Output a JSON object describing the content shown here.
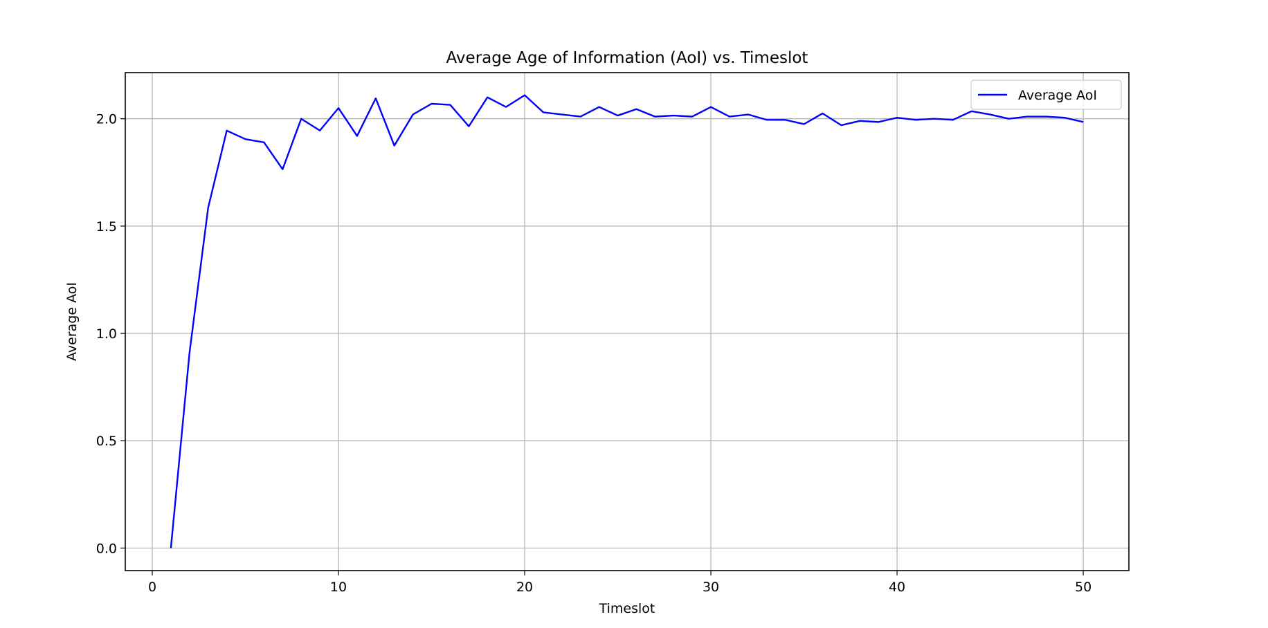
{
  "chart_data": {
    "type": "line",
    "title": "Average Age of Information (AoI) vs. Timeslot",
    "xlabel": "Timeslot",
    "ylabel": "Average AoI",
    "xlim": [
      -1.45,
      52.45
    ],
    "ylim": [
      -0.105,
      2.215
    ],
    "xticks": [
      0,
      10,
      20,
      30,
      40,
      50
    ],
    "xtick_labels": [
      "0",
      "10",
      "20",
      "30",
      "40",
      "50"
    ],
    "yticks": [
      0.0,
      0.5,
      1.0,
      1.5,
      2.0
    ],
    "ytick_labels": [
      "0.0",
      "0.5",
      "1.0",
      "1.5",
      "2.0"
    ],
    "grid": true,
    "legend_position": "top-right",
    "series": [
      {
        "name": "Average AoI",
        "color": "#0000ff",
        "x": [
          1,
          2,
          3,
          4,
          5,
          6,
          7,
          8,
          9,
          10,
          11,
          12,
          13,
          14,
          15,
          16,
          17,
          18,
          19,
          20,
          21,
          22,
          23,
          24,
          25,
          26,
          27,
          28,
          29,
          30,
          31,
          32,
          33,
          34,
          35,
          36,
          37,
          38,
          39,
          40,
          41,
          42,
          43,
          44,
          45,
          46,
          47,
          48,
          49,
          50
        ],
        "values": [
          0.0,
          0.91,
          1.585,
          1.945,
          1.905,
          1.89,
          1.765,
          2.0,
          1.945,
          2.05,
          1.92,
          2.095,
          1.875,
          2.02,
          2.07,
          2.065,
          1.965,
          2.1,
          2.055,
          2.11,
          2.03,
          2.02,
          2.01,
          2.055,
          2.015,
          2.045,
          2.01,
          2.015,
          2.01,
          2.055,
          2.01,
          2.02,
          1.995,
          1.995,
          1.975,
          2.025,
          1.97,
          1.99,
          1.985,
          2.005,
          1.995,
          2.0,
          1.995,
          2.035,
          2.02,
          2.0,
          2.01,
          2.01,
          2.005,
          1.985
        ]
      }
    ]
  }
}
